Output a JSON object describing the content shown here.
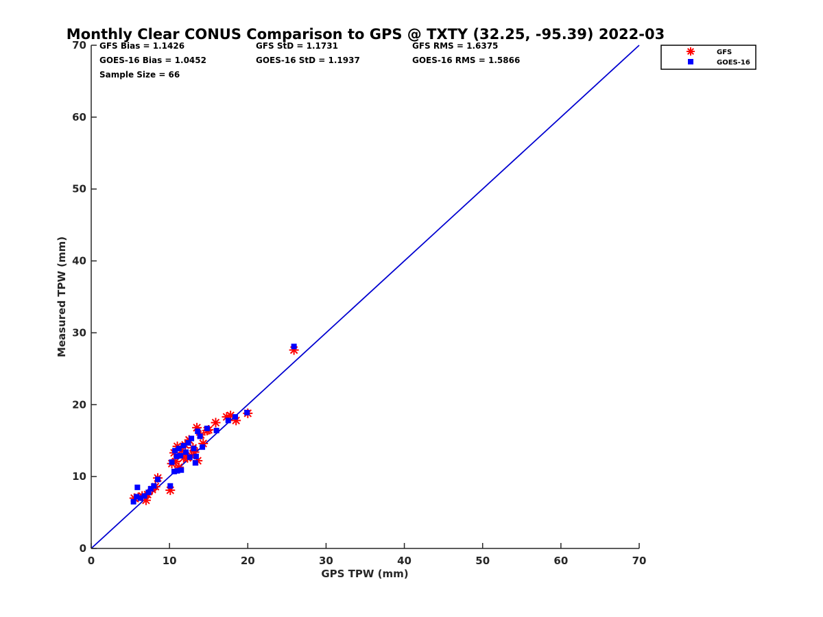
{
  "chart_data": {
    "type": "scatter",
    "title": "Monthly Clear CONUS Comparison to GPS @ TXTY (32.25, -95.39) 2022-03",
    "xlabel": "GPS TPW (mm)",
    "ylabel": "Measured TPW (mm)",
    "xlim": [
      0,
      70
    ],
    "ylim": [
      0,
      70
    ],
    "xticks": [
      "0",
      "10",
      "20",
      "30",
      "40",
      "50",
      "60",
      "70"
    ],
    "yticks": [
      "0",
      "10",
      "20",
      "30",
      "40",
      "50",
      "60",
      "70"
    ],
    "grid": false,
    "legend_position": "top-right",
    "stats": [
      "GFS Bias = 1.1426",
      "GFS StD = 1.1731",
      "GFS RMS = 1.6375",
      "GOES-16 Bias = 1.0452",
      "GOES-16 StD = 1.1937",
      "GOES-16 RMS = 1.5866",
      "Sample Size = 66"
    ],
    "reference_line": {
      "x": [
        0,
        70
      ],
      "y": [
        0,
        70
      ],
      "color": "#0000d0"
    },
    "series": [
      {
        "name": "GFS",
        "marker": "asterisk",
        "color": "#ff0000",
        "points": [
          [
            5.5,
            7.0
          ],
          [
            6.0,
            7.1
          ],
          [
            6.5,
            7.3
          ],
          [
            7.0,
            6.7
          ],
          [
            7.2,
            7.5
          ],
          [
            7.8,
            8.2
          ],
          [
            8.2,
            8.6
          ],
          [
            8.5,
            9.8
          ],
          [
            10.1,
            8.1
          ],
          [
            10.3,
            11.8
          ],
          [
            10.6,
            13.3
          ],
          [
            10.8,
            12.1
          ],
          [
            11.0,
            14.2
          ],
          [
            11.2,
            11.3
          ],
          [
            11.5,
            13.6
          ],
          [
            11.8,
            12.6
          ],
          [
            12.0,
            14.4
          ],
          [
            12.3,
            12.6
          ],
          [
            12.5,
            15.1
          ],
          [
            12.8,
            12.9
          ],
          [
            13.0,
            14.0
          ],
          [
            13.2,
            13.4
          ],
          [
            13.5,
            16.8
          ],
          [
            13.6,
            12.2
          ],
          [
            14.0,
            15.8
          ],
          [
            14.3,
            14.6
          ],
          [
            14.8,
            16.4
          ],
          [
            15.0,
            16.5
          ],
          [
            15.9,
            17.5
          ],
          [
            17.3,
            18.3
          ],
          [
            17.8,
            18.5
          ],
          [
            18.5,
            17.8
          ],
          [
            20.0,
            18.8
          ],
          [
            25.9,
            27.6
          ]
        ]
      },
      {
        "name": "GOES-16",
        "marker": "square",
        "color": "#0000ff",
        "points": [
          [
            5.4,
            6.5
          ],
          [
            5.8,
            7.2
          ],
          [
            5.9,
            8.5
          ],
          [
            6.3,
            7.0
          ],
          [
            6.8,
            7.3
          ],
          [
            7.3,
            7.8
          ],
          [
            7.6,
            8.3
          ],
          [
            8.0,
            8.7
          ],
          [
            8.5,
            9.6
          ],
          [
            10.1,
            8.7
          ],
          [
            10.3,
            12.0
          ],
          [
            10.6,
            10.7
          ],
          [
            10.7,
            13.6
          ],
          [
            10.9,
            12.8
          ],
          [
            11.0,
            10.8
          ],
          [
            11.2,
            13.9
          ],
          [
            11.4,
            12.9
          ],
          [
            11.5,
            10.9
          ],
          [
            11.8,
            14.3
          ],
          [
            12.1,
            13.4
          ],
          [
            12.4,
            14.7
          ],
          [
            12.6,
            12.7
          ],
          [
            12.8,
            15.3
          ],
          [
            13.1,
            13.9
          ],
          [
            13.3,
            11.9
          ],
          [
            13.4,
            12.8
          ],
          [
            13.6,
            16.3
          ],
          [
            13.9,
            15.6
          ],
          [
            14.2,
            14.1
          ],
          [
            14.8,
            16.7
          ],
          [
            16.0,
            16.4
          ],
          [
            17.5,
            17.8
          ],
          [
            18.4,
            18.3
          ],
          [
            19.9,
            18.9
          ],
          [
            25.9,
            28.1
          ]
        ]
      }
    ]
  }
}
